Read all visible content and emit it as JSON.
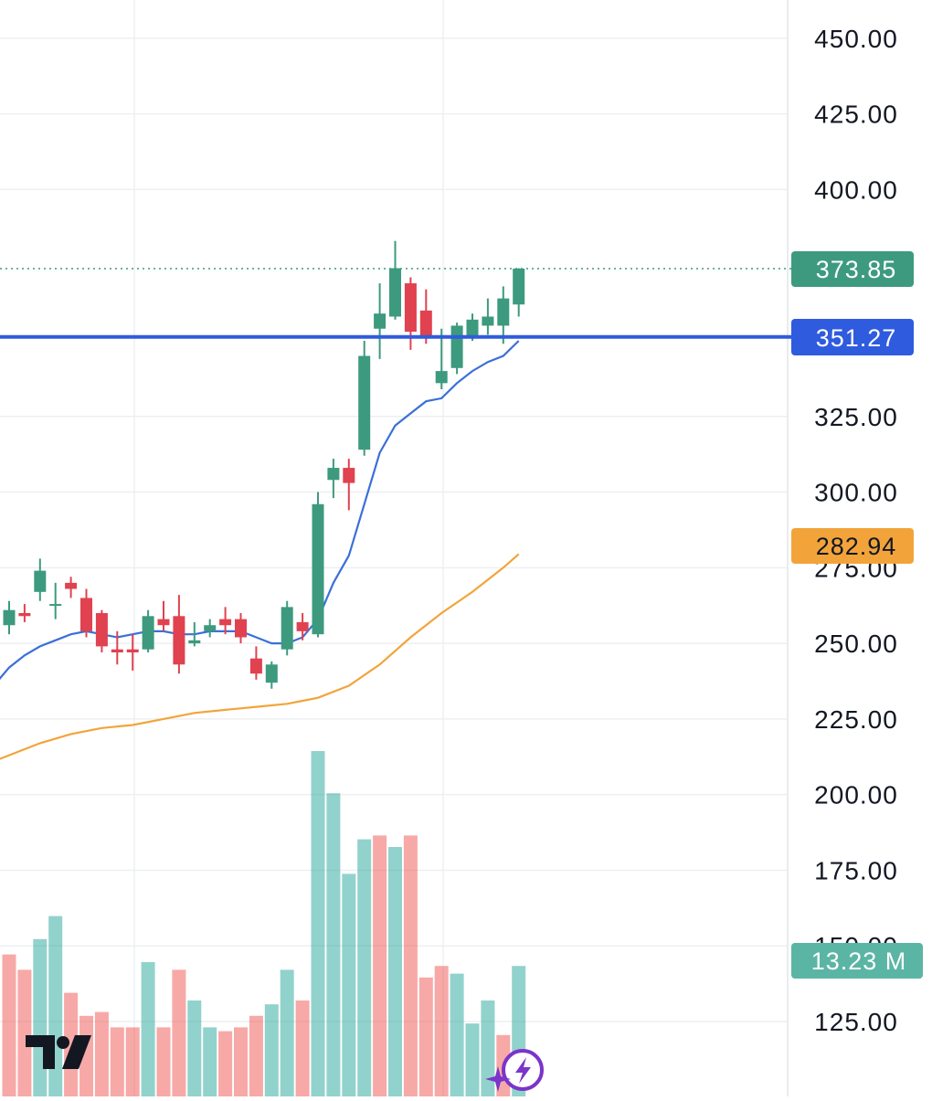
{
  "chart_data": {
    "type": "candlestick",
    "y_ticks": [
      "450.00",
      "425.00",
      "400.00",
      "325.00",
      "300.00",
      "275.00",
      "250.00",
      "225.00",
      "200.00",
      "175.00",
      "150.00",
      "125.00"
    ],
    "tick_values": [
      450,
      425,
      400,
      325,
      300,
      275,
      250,
      225,
      200,
      175,
      150,
      125
    ],
    "ylim": [
      110,
      460
    ],
    "grid": true,
    "candles": [
      {
        "o": 256,
        "h": 264,
        "l": 253,
        "c": 261
      },
      {
        "o": 260,
        "h": 263,
        "l": 257,
        "c": 259
      },
      {
        "o": 267,
        "h": 278,
        "l": 264,
        "c": 274
      },
      {
        "o": 263,
        "h": 270,
        "l": 258,
        "c": 263
      },
      {
        "o": 270,
        "h": 272,
        "l": 265,
        "c": 268
      },
      {
        "o": 265,
        "h": 268,
        "l": 252,
        "c": 254
      },
      {
        "o": 260,
        "h": 261,
        "l": 247,
        "c": 249
      },
      {
        "o": 248,
        "h": 254,
        "l": 243,
        "c": 247
      },
      {
        "o": 248,
        "h": 253,
        "l": 241,
        "c": 247
      },
      {
        "o": 248,
        "h": 261,
        "l": 247,
        "c": 259
      },
      {
        "o": 258,
        "h": 264,
        "l": 254,
        "c": 256
      },
      {
        "o": 259,
        "h": 266,
        "l": 240,
        "c": 243
      },
      {
        "o": 250,
        "h": 257,
        "l": 249,
        "c": 251
      },
      {
        "o": 254,
        "h": 258,
        "l": 252,
        "c": 256
      },
      {
        "o": 258,
        "h": 262,
        "l": 253,
        "c": 256
      },
      {
        "o": 258,
        "h": 260,
        "l": 250,
        "c": 252
      },
      {
        "o": 245,
        "h": 249,
        "l": 238,
        "c": 240
      },
      {
        "o": 237,
        "h": 244,
        "l": 235,
        "c": 243
      },
      {
        "o": 248,
        "h": 264,
        "l": 246,
        "c": 262
      },
      {
        "o": 257,
        "h": 260,
        "l": 251,
        "c": 254
      },
      {
        "o": 253,
        "h": 300,
        "l": 252,
        "c": 296
      },
      {
        "o": 304,
        "h": 311,
        "l": 298,
        "c": 308
      },
      {
        "o": 308,
        "h": 311,
        "l": 294,
        "c": 303
      },
      {
        "o": 314,
        "h": 350,
        "l": 312,
        "c": 345
      },
      {
        "o": 354,
        "h": 369,
        "l": 344,
        "c": 359
      },
      {
        "o": 358,
        "h": 383,
        "l": 357,
        "c": 374
      },
      {
        "o": 369,
        "h": 371,
        "l": 347,
        "c": 353
      },
      {
        "o": 360,
        "h": 367,
        "l": 349,
        "c": 351
      },
      {
        "o": 336,
        "h": 354,
        "l": 334,
        "c": 340
      },
      {
        "o": 341,
        "h": 356,
        "l": 339,
        "c": 355
      },
      {
        "o": 351,
        "h": 359,
        "l": 350,
        "c": 357
      },
      {
        "o": 355,
        "h": 364,
        "l": 352,
        "c": 358
      },
      {
        "o": 355,
        "h": 368,
        "l": 349,
        "c": 364
      },
      {
        "o": 362,
        "h": 374,
        "l": 358,
        "c": 373.85
      }
    ],
    "ma_fast": [
      242,
      246,
      249,
      251,
      253,
      254,
      253,
      252,
      253,
      254,
      254,
      253,
      253,
      254,
      254,
      254,
      252,
      250,
      250,
      252,
      258,
      270,
      279,
      296,
      313,
      322,
      326,
      330,
      331,
      336,
      340,
      343,
      345,
      350
    ],
    "ma_slow": {
      "x_index": [
        -1,
        0,
        2,
        4,
        6,
        8,
        10,
        12,
        14,
        16,
        18,
        19,
        20,
        22,
        24,
        26,
        28,
        30,
        32,
        33
      ],
      "values": [
        211,
        213,
        217,
        220,
        222,
        223,
        225,
        227,
        228,
        229,
        230,
        231,
        232,
        236,
        243,
        252,
        260,
        267,
        275,
        279.5
      ]
    },
    "volume": {
      "max": 100,
      "values": [
        37,
        33,
        41,
        47,
        27,
        21,
        22,
        18,
        18,
        35,
        18,
        33,
        25,
        18,
        17,
        18,
        21,
        24,
        33,
        25,
        90,
        79,
        58,
        67,
        68,
        65,
        68,
        31,
        34,
        32,
        19,
        25,
        16,
        34
      ],
      "up": [
        false,
        false,
        true,
        true,
        false,
        false,
        false,
        false,
        false,
        true,
        false,
        false,
        true,
        true,
        false,
        false,
        false,
        true,
        true,
        false,
        true,
        true,
        true,
        true,
        false,
        true,
        false,
        false,
        false,
        true,
        true,
        true,
        false,
        true
      ]
    },
    "price_line_level": 351.27,
    "last_price_level": 373.85,
    "slow_ma_level": 282.94
  },
  "badges": {
    "last_price": "373.85",
    "price_line": "351.27",
    "slow_ma": "282.94",
    "volume": "13.23 M"
  },
  "colors": {
    "up": "#26a69a",
    "down": "#ef5350",
    "up_body": "#3d9a7e",
    "down_body": "#e0424f",
    "fast_ma": "#3b6fd8",
    "slow_ma": "#f2a43a",
    "price_line": "#2f5bde",
    "grid": "#eeeff2"
  },
  "icons": {
    "logo": "tradingview-logo-icon",
    "assistant": "lightning-sparkle-icon"
  }
}
